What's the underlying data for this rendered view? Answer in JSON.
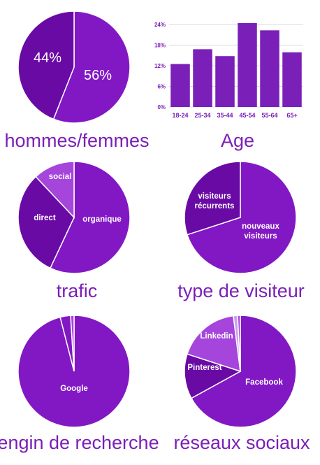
{
  "colors": {
    "dark": "#6a0aa5",
    "medium": "#8218c4",
    "light": "#a545dc",
    "pale": "#c8a0e8",
    "title": "#7a1fb8",
    "grid": "#d9d9d9"
  },
  "chart_data": [
    {
      "type": "pie",
      "title": "hommes/femmes",
      "slices": [
        {
          "label": "56%",
          "value": 56,
          "color": "#8218c4"
        },
        {
          "label": "44%",
          "value": 44,
          "color": "#6a0aa5"
        }
      ]
    },
    {
      "type": "bar",
      "title": "Age",
      "categories": [
        "18-24",
        "25-34",
        "35-44",
        "45-54",
        "55-64",
        "65+"
      ],
      "values": [
        12.5,
        16.8,
        14.8,
        24.4,
        22.3,
        15.9
      ],
      "yticks": [
        "0%",
        "6%",
        "12%",
        "18%",
        "24%"
      ],
      "ylim": [
        0,
        24
      ],
      "grid": true,
      "color": "#7a1fb8"
    },
    {
      "type": "pie",
      "title": "trafic",
      "slices": [
        {
          "label": "organique",
          "value": 57,
          "color": "#8218c4"
        },
        {
          "label": "direct",
          "value": 31,
          "color": "#6a0aa5"
        },
        {
          "label": "social",
          "value": 12,
          "color": "#a545dc"
        }
      ]
    },
    {
      "type": "pie",
      "title": "type de visiteur",
      "slices": [
        {
          "label": "nouveaux visiteurs",
          "value": 70,
          "color": "#8218c4"
        },
        {
          "label": "visiteurs récurrents",
          "value": 30,
          "color": "#6a0aa5"
        }
      ]
    },
    {
      "type": "pie",
      "title": "engin de recherche",
      "slices": [
        {
          "label": "Google",
          "value": 96,
          "color": "#8218c4"
        },
        {
          "label": "",
          "value": 3,
          "color": "#8218c4"
        },
        {
          "label": "",
          "value": 1,
          "color": "#a545dc"
        }
      ]
    },
    {
      "type": "pie",
      "title": "réseaux sociaux",
      "slices": [
        {
          "label": "Facebook",
          "value": 67,
          "color": "#8218c4"
        },
        {
          "label": "Pinterest",
          "value": 13,
          "color": "#6a0aa5"
        },
        {
          "label": "Linkedin",
          "value": 18,
          "color": "#a545dc"
        },
        {
          "label": "",
          "value": 1.2,
          "color": "#c8a0e8"
        },
        {
          "label": "",
          "value": 0.8,
          "color": "#a545dc"
        }
      ]
    }
  ]
}
